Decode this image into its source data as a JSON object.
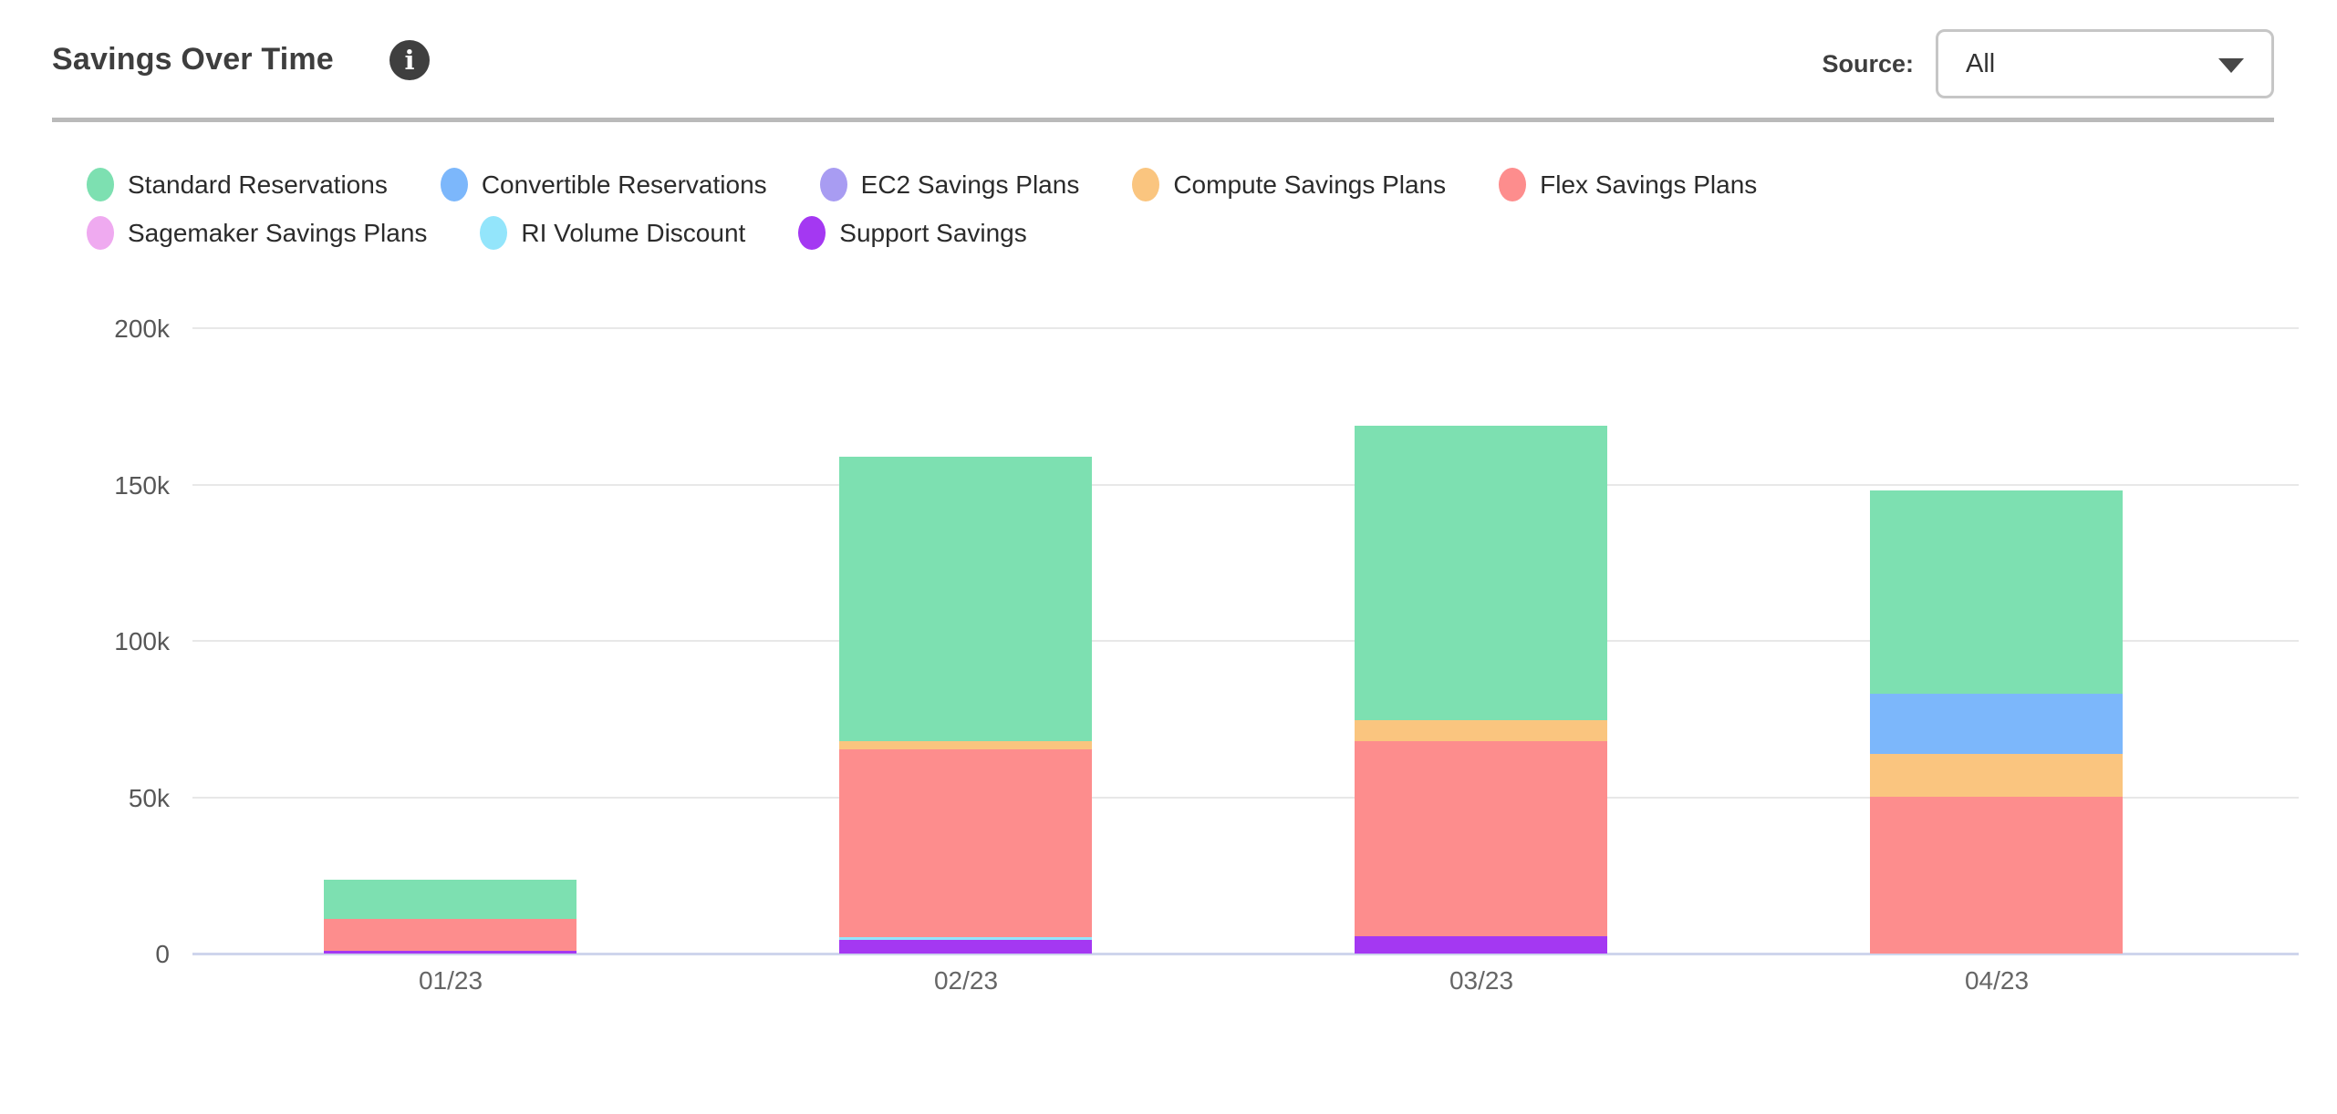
{
  "header": {
    "title": "Savings Over Time",
    "info_icon_glyph": "i",
    "source_label": "Source:",
    "source_value": "All"
  },
  "colors": {
    "divider": "#bababa",
    "gridline": "#e8e8e8",
    "axis_line": "#ced5ec",
    "title_text": "#3e3e3e",
    "info_icon_bg": "#3f3f3f"
  },
  "legend": {
    "rows": [
      [
        "Standard Reservations",
        "Convertible Reservations",
        "EC2 Savings Plans",
        "Compute Savings Plans",
        "Flex Savings Plans"
      ],
      [
        "Sagemaker Savings Plans",
        "RI Volume Discount",
        "Support Savings"
      ]
    ]
  },
  "chart_data": {
    "type": "bar",
    "stacked": true,
    "title": "Savings Over Time",
    "xlabel": "",
    "ylabel": "",
    "categories": [
      "01/23",
      "02/23",
      "03/23",
      "04/23"
    ],
    "series": [
      {
        "name": "Standard Reservations",
        "color": "#7de0b1",
        "values": [
          12500,
          91000,
          94200,
          65000
        ]
      },
      {
        "name": "Convertible Reservations",
        "color": "#7cb7fb",
        "values": [
          0,
          0,
          0,
          19200
        ]
      },
      {
        "name": "EC2 Savings Plans",
        "color": "#a89cf2",
        "values": [
          0,
          0,
          0,
          0
        ]
      },
      {
        "name": "Compute Savings Plans",
        "color": "#fac57f",
        "values": [
          0,
          2600,
          6700,
          13700
        ]
      },
      {
        "name": "Flex Savings Plans",
        "color": "#fd8d8d",
        "values": [
          10200,
          60000,
          62400,
          50000
        ]
      },
      {
        "name": "Sagemaker Savings Plans",
        "color": "#efaaf0",
        "values": [
          0,
          0,
          0,
          0
        ]
      },
      {
        "name": "RI Volume Discount",
        "color": "#93e5fb",
        "values": [
          0,
          1000,
          0,
          0
        ]
      },
      {
        "name": "Support Savings",
        "color": "#a438f2",
        "values": [
          1000,
          4400,
          5400,
          0
        ]
      }
    ],
    "stack_order_bottom_to_top": [
      "Support Savings",
      "RI Volume Discount",
      "Sagemaker Savings Plans",
      "Flex Savings Plans",
      "Compute Savings Plans",
      "EC2 Savings Plans",
      "Convertible Reservations",
      "Standard Reservations"
    ],
    "totals": [
      23700,
      159000,
      168700,
      147900
    ],
    "yticks": [
      {
        "label": "0",
        "value": 0
      },
      {
        "label": "50k",
        "value": 50000
      },
      {
        "label": "100k",
        "value": 100000
      },
      {
        "label": "150k",
        "value": 150000
      },
      {
        "label": "200k",
        "value": 200000
      }
    ],
    "ylim": [
      0,
      200000
    ],
    "grid": true,
    "legend_position": "top"
  }
}
